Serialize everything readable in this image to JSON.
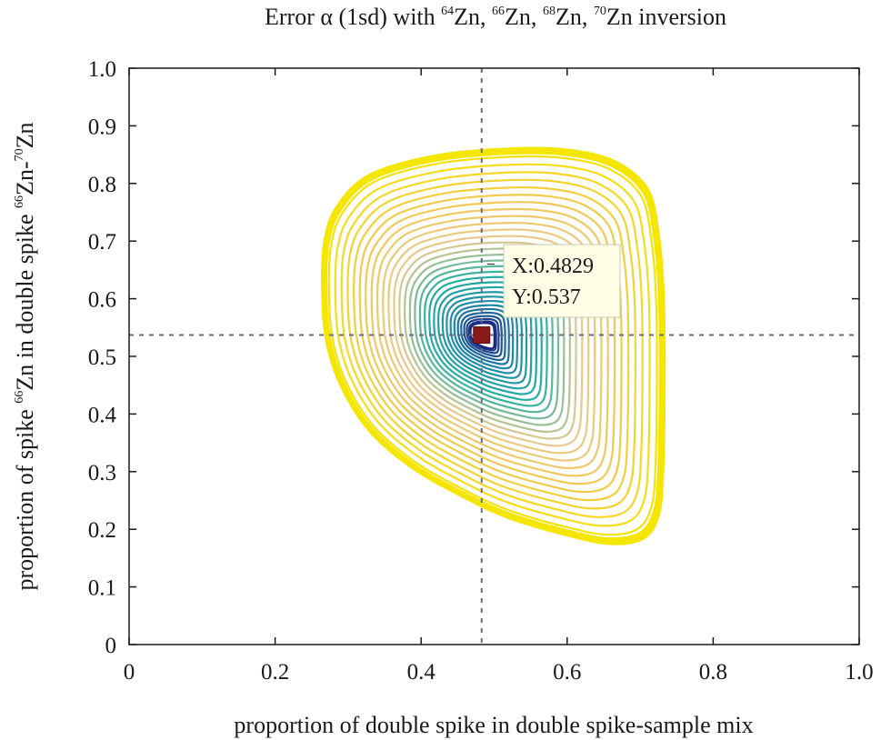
{
  "chart_data": {
    "type": "contour",
    "title": {
      "prefix": "Error α (1sd) with ",
      "isotopes": [
        {
          "mass": "64",
          "element": "Zn",
          "sep": ", "
        },
        {
          "mass": "66",
          "element": "Zn",
          "sep": ", "
        },
        {
          "mass": "68",
          "element": "Zn",
          "sep": ", "
        },
        {
          "mass": "70",
          "element": "Zn",
          "sep": ""
        }
      ],
      "suffix": " inversion"
    },
    "xlabel": "proportion of double spike in double spike-sample mix",
    "ylabel": {
      "prefix": "proportion of  spike ",
      "mass1": "66",
      "mid": "Zn in double spike ",
      "mass2": "66",
      "mid2": "Zn-",
      "mass3": "70",
      "suffix": "Zn"
    },
    "xlim": [
      0,
      1
    ],
    "ylim": [
      0,
      1
    ],
    "xticks": [
      0,
      0.2,
      0.4,
      0.6,
      0.8,
      1
    ],
    "xtick_labels": [
      "0",
      "0.2",
      "0.4",
      "0.6",
      "0.8",
      "1.0"
    ],
    "yticks": [
      0,
      0.1,
      0.2,
      0.3,
      0.4,
      0.5,
      0.6,
      0.7,
      0.8,
      0.9,
      1
    ],
    "ytick_labels": [
      "0",
      "0.1",
      "0.2",
      "0.3",
      "0.4",
      "0.5",
      "0.6",
      "0.7",
      "0.8",
      "0.9",
      "1.0"
    ],
    "grid": false,
    "colormap": [
      "#1a237e",
      "#1e88a8",
      "#26b0a0",
      "#e8c98f",
      "#f2c94c",
      "#f5e600"
    ],
    "levels": 32,
    "optimum": {
      "x": 0.4829,
      "y": 0.537,
      "marker_color": "#8b1a1a"
    },
    "outer_contour": [
      [
        0.265,
        0.62
      ],
      [
        0.268,
        0.7
      ],
      [
        0.285,
        0.76
      ],
      [
        0.33,
        0.815
      ],
      [
        0.42,
        0.848
      ],
      [
        0.52,
        0.86
      ],
      [
        0.6,
        0.858
      ],
      [
        0.665,
        0.838
      ],
      [
        0.71,
        0.79
      ],
      [
        0.725,
        0.71
      ],
      [
        0.732,
        0.6
      ],
      [
        0.733,
        0.45
      ],
      [
        0.731,
        0.3
      ],
      [
        0.725,
        0.225
      ],
      [
        0.705,
        0.185
      ],
      [
        0.66,
        0.175
      ],
      [
        0.6,
        0.19
      ],
      [
        0.52,
        0.22
      ],
      [
        0.46,
        0.255
      ],
      [
        0.39,
        0.305
      ],
      [
        0.33,
        0.37
      ],
      [
        0.29,
        0.45
      ],
      [
        0.27,
        0.53
      ]
    ],
    "tooltip": {
      "x_text": "X:0.4829",
      "y_text": "Y:0.537"
    }
  }
}
